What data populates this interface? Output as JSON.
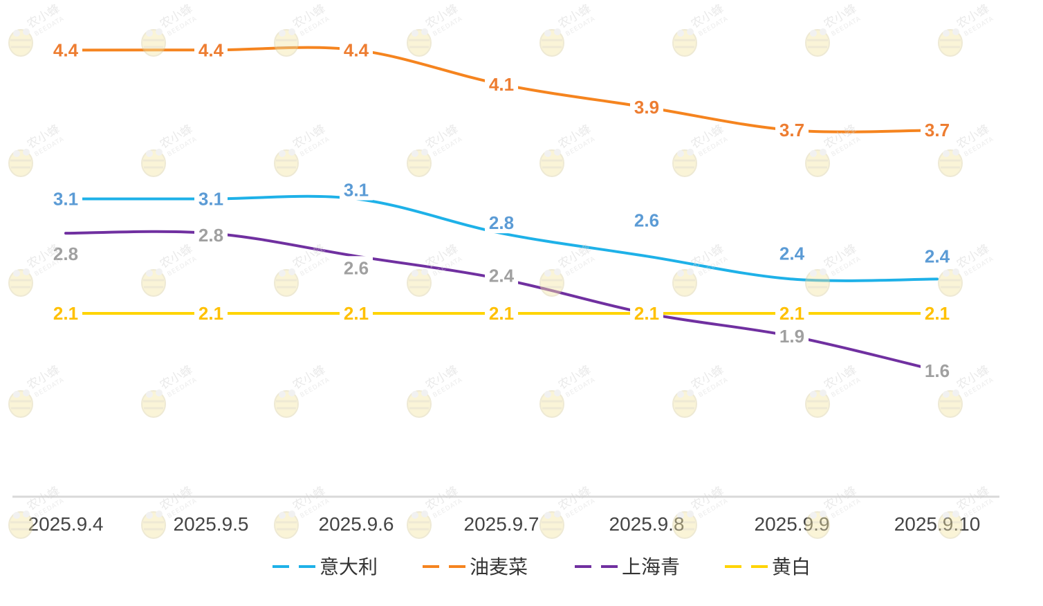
{
  "chart_data": {
    "type": "line",
    "categories": [
      "2025.9.4",
      "2025.9.5",
      "2025.9.6",
      "2025.9.7",
      "2025.9.8",
      "2025.9.9",
      "2025.9.10"
    ],
    "series": [
      {
        "name": "意大利",
        "color": "#1EB1E8",
        "label_color": "#5B9BD5",
        "values": [
          3.1,
          3.1,
          3.1,
          2.8,
          2.6,
          2.4,
          2.4
        ]
      },
      {
        "name": "油麦菜",
        "color": "#F5841F",
        "label_color": "#ED7D31",
        "values": [
          4.4,
          4.4,
          4.4,
          4.1,
          3.9,
          3.7,
          3.7
        ]
      },
      {
        "name": "上海青",
        "color": "#7030A0",
        "label_color": "#A0A0A0",
        "values": [
          2.8,
          2.8,
          2.6,
          2.4,
          2.1,
          1.9,
          1.6
        ]
      },
      {
        "name": "黄白",
        "color": "#FFD400",
        "label_color": "#FFC000",
        "values": [
          2.1,
          2.1,
          2.1,
          2.1,
          2.1,
          2.1,
          2.1
        ]
      }
    ],
    "ylim": [
      0,
      4.8
    ],
    "grid": false,
    "legend_position": "bottom",
    "watermark": {
      "brand": "农小蜂",
      "sub": "BEEDATA"
    }
  }
}
